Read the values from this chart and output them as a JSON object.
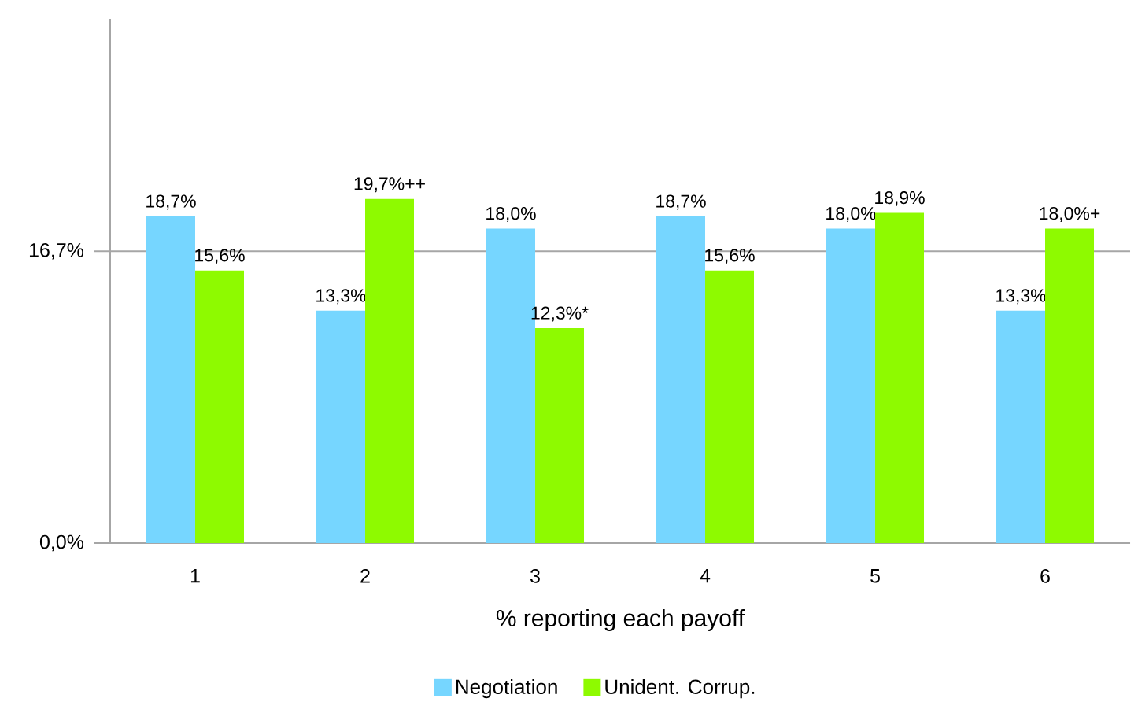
{
  "chart_data": {
    "type": "bar",
    "xlabel": "% reporting each payoff",
    "categories": [
      "1",
      "2",
      "3",
      "4",
      "5",
      "6"
    ],
    "series": [
      {
        "name": "Negotiation",
        "color": "#76d6ff",
        "values": [
          18.7,
          13.3,
          18.0,
          18.7,
          18.0,
          13.3
        ],
        "value_labels": [
          "18,7%",
          "13,3%",
          "18,0%",
          "18,7%",
          "18,0%",
          "13,3%"
        ]
      },
      {
        "name": "Unident. Corrup.",
        "color": "#8efa00",
        "values": [
          15.6,
          19.7,
          12.3,
          15.6,
          18.9,
          18.0
        ],
        "value_labels": [
          "15,6%",
          "19,7%++",
          "12,3%*",
          "15,6%",
          "18,9%",
          "18,0%+"
        ]
      }
    ],
    "ylim": [
      0,
      30
    ],
    "yticks": [
      {
        "value": 0,
        "label": "0,0%"
      },
      {
        "value": 16.7,
        "label": "16,7%"
      }
    ],
    "grid": "y",
    "legend": "bottom"
  }
}
